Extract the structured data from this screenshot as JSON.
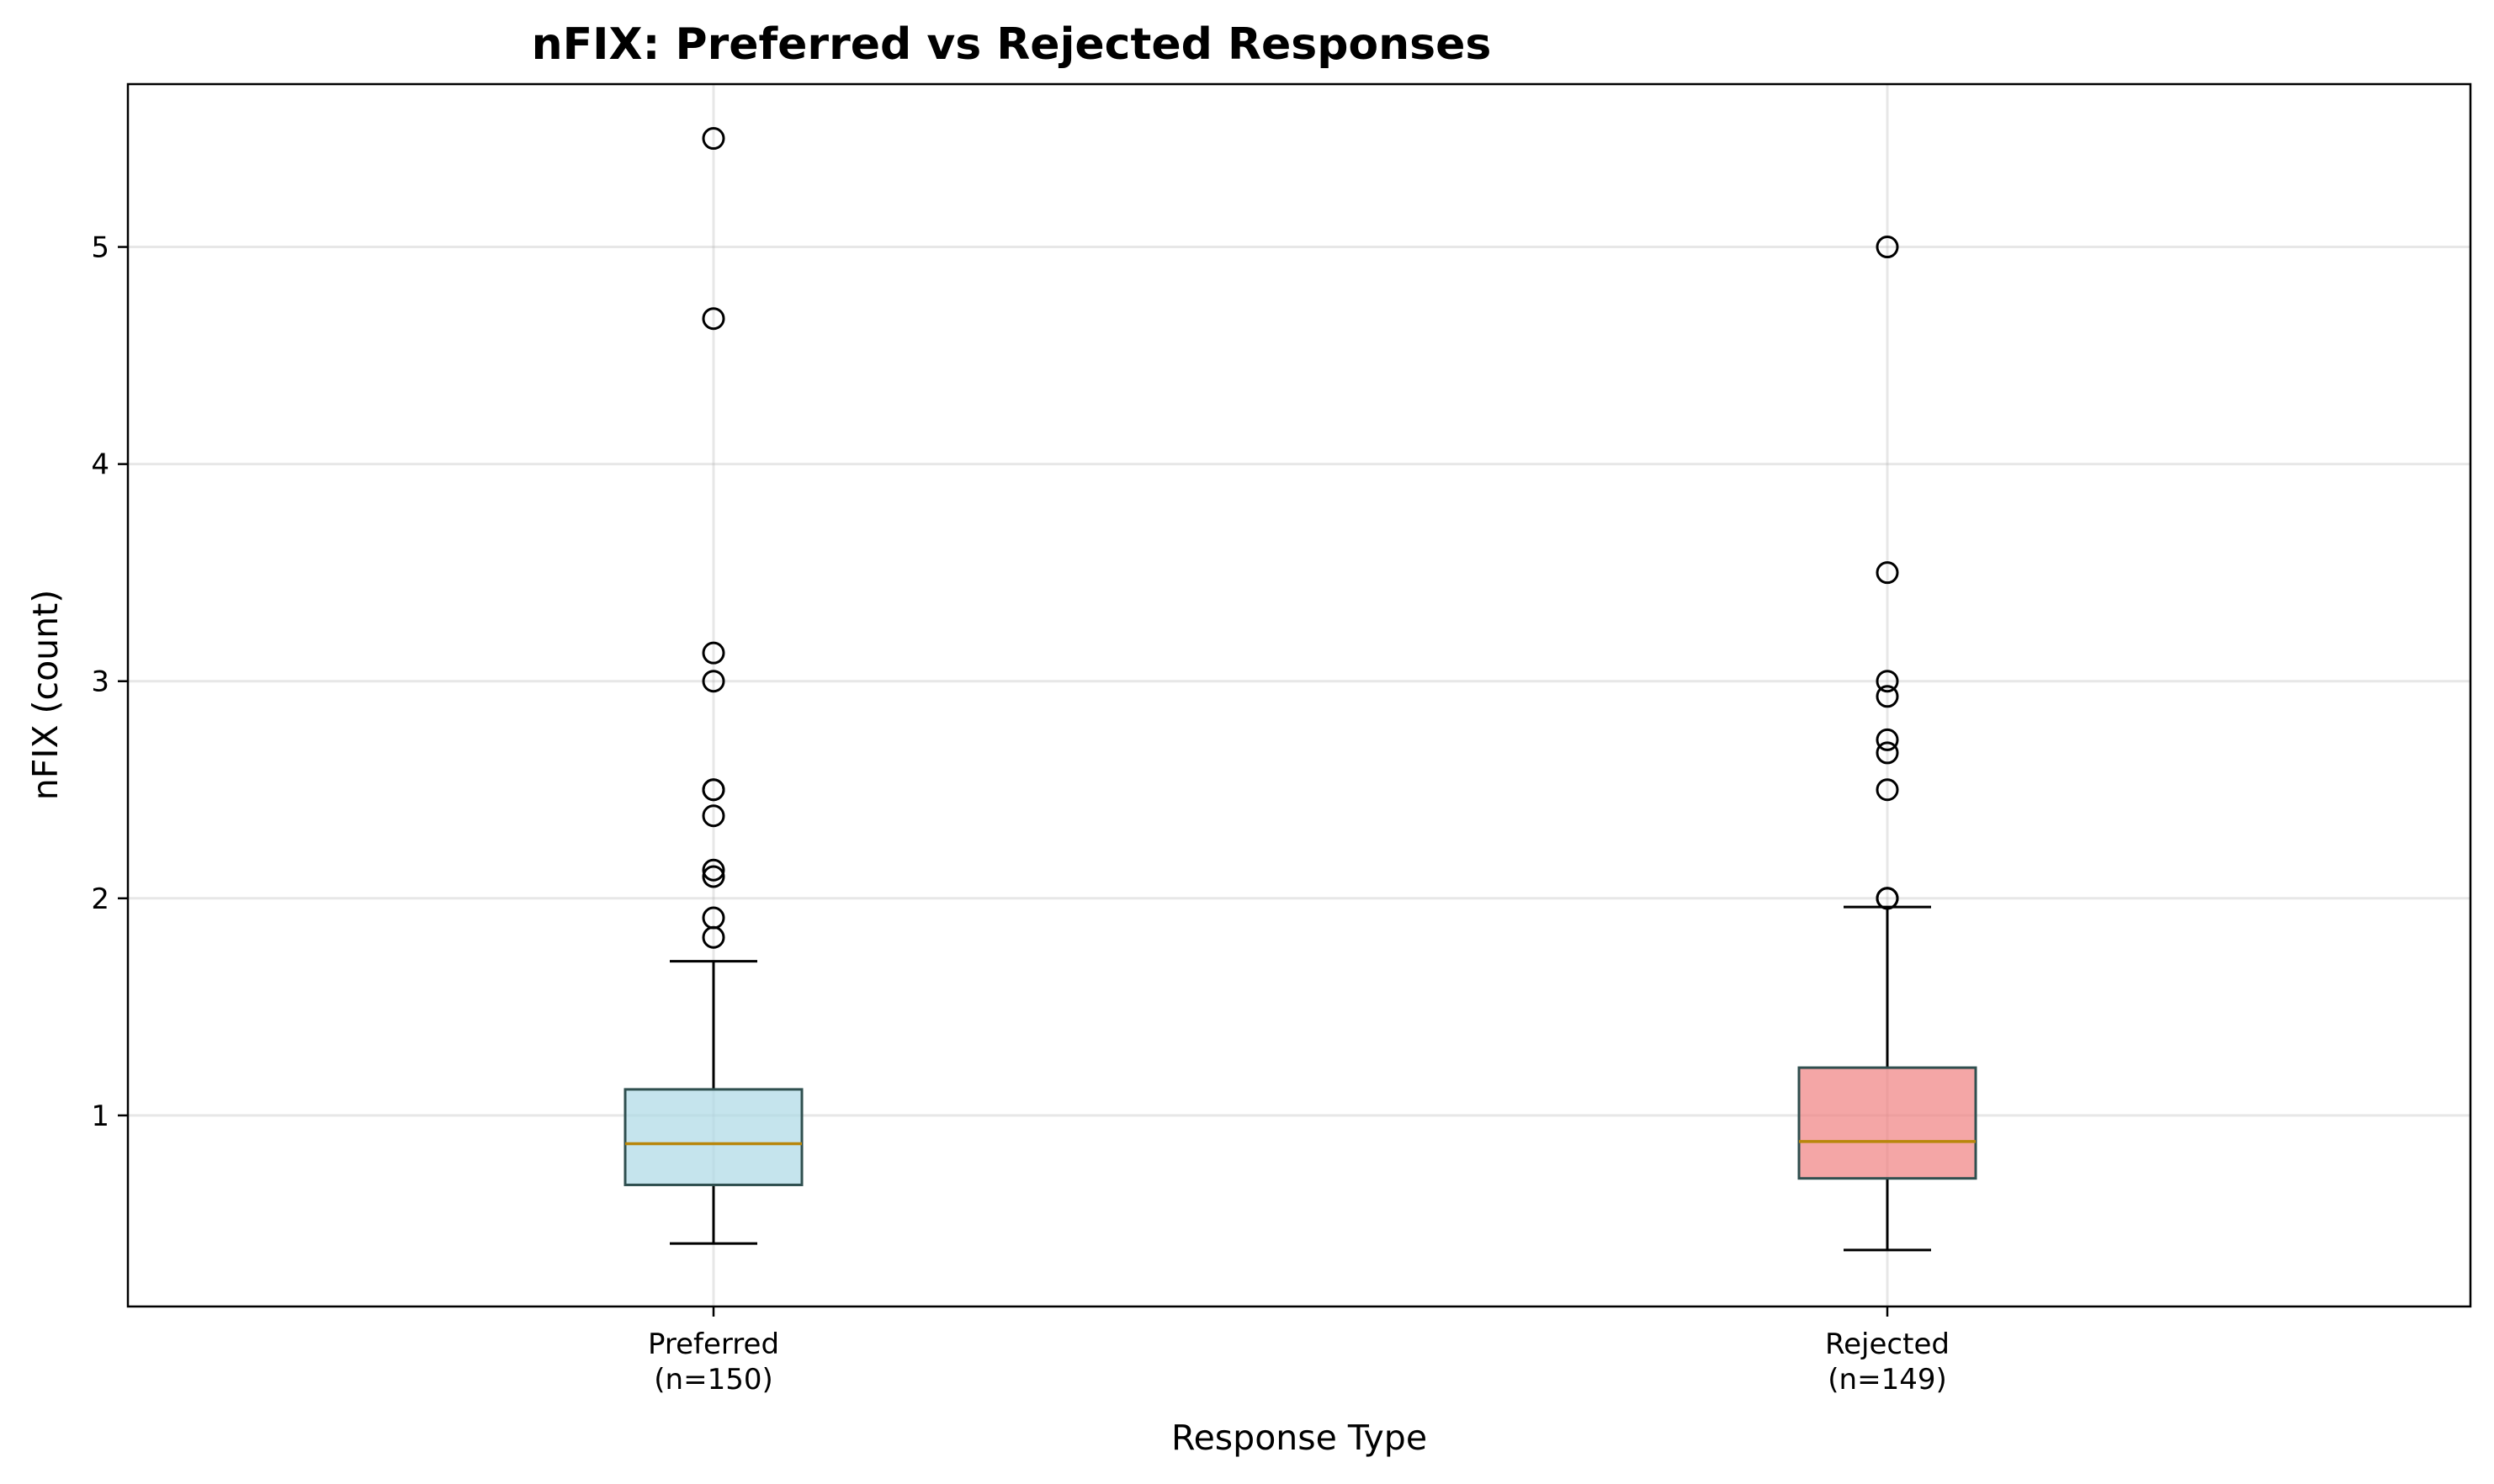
{
  "chart_data": {
    "type": "box",
    "title": "nFIX: Preferred vs Rejected Responses",
    "xlabel": "Response Type",
    "ylabel": "nFIX (count)",
    "ylim": [
      0.12,
      5.75
    ],
    "yticks": [
      1,
      2,
      3,
      4,
      5
    ],
    "ytick_labels": [
      "1",
      "2",
      "3",
      "4",
      "5"
    ],
    "grid": true,
    "median_color": "#b8860b",
    "box_edge_color": "#2f4f4f",
    "series": [
      {
        "label_line1": "Preferred",
        "label_line2": "(n=150)",
        "color": "#add8e6",
        "whisker_low": 0.41,
        "q1": 0.68,
        "median": 0.87,
        "q3": 1.12,
        "whisker_high": 1.71,
        "fliers": [
          5.5,
          4.67,
          3.13,
          3.0,
          2.5,
          2.5,
          2.38,
          2.13,
          2.1,
          1.91,
          1.82
        ]
      },
      {
        "label_line1": "Rejected",
        "label_line2": "(n=149)",
        "color": "#f08080",
        "whisker_low": 0.38,
        "q1": 0.71,
        "median": 0.88,
        "q3": 1.22,
        "whisker_high": 1.96,
        "fliers": [
          5.0,
          3.5,
          3.0,
          2.93,
          2.73,
          2.67,
          2.5,
          2.0,
          2.0
        ]
      }
    ]
  }
}
